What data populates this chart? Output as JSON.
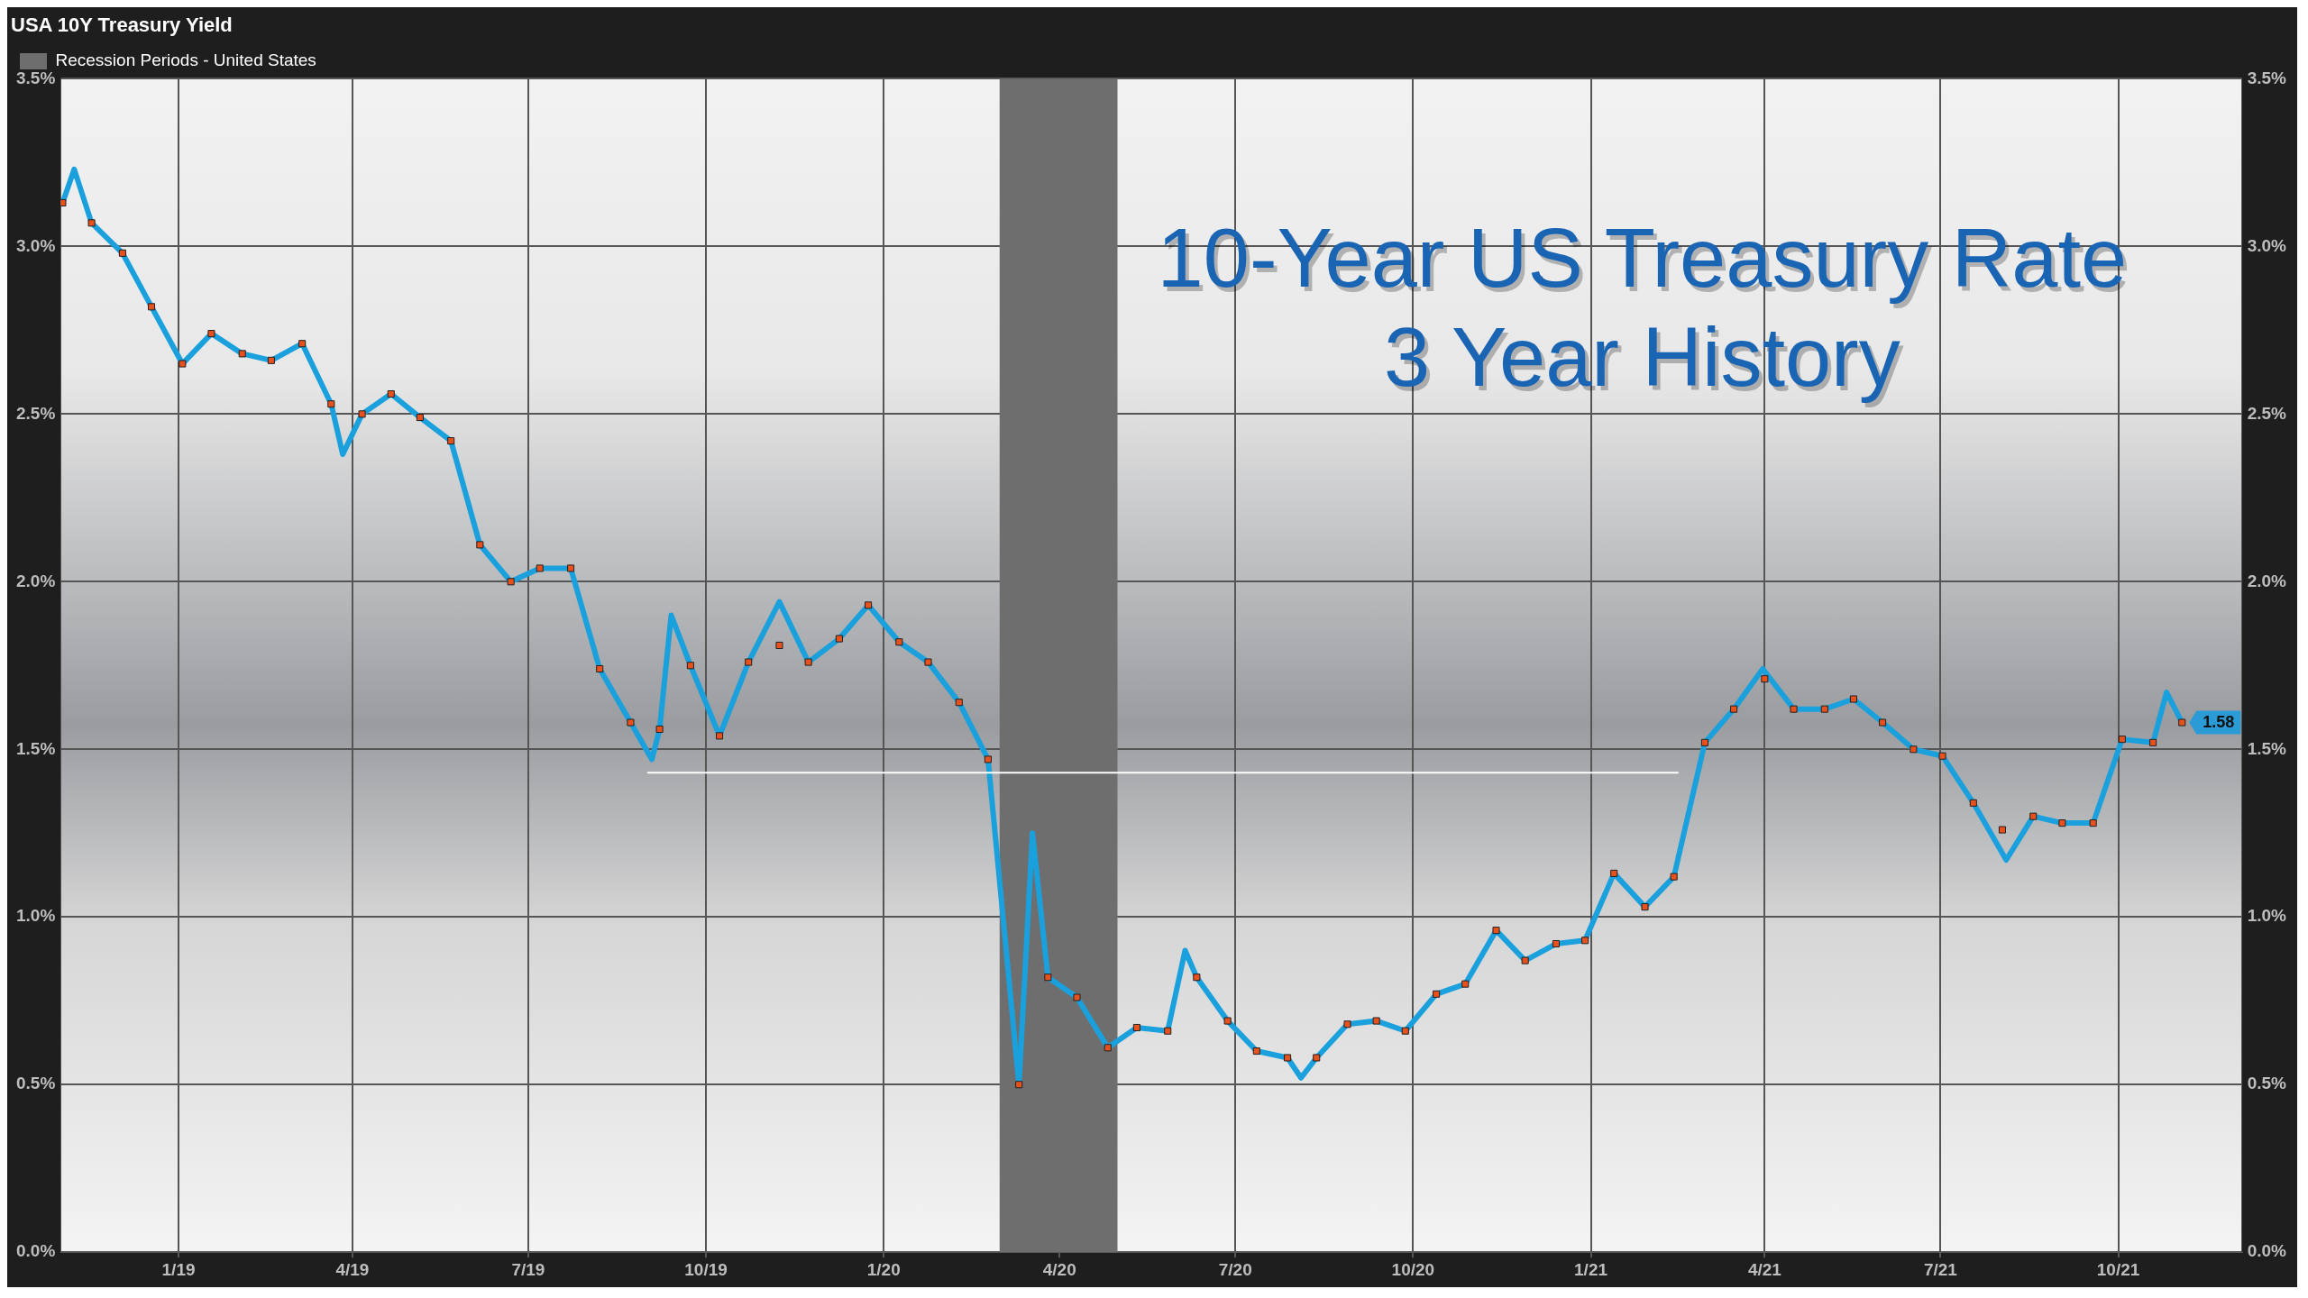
{
  "chart_data": {
    "type": "line",
    "title": "USA 10Y Treasury Yield",
    "annotations": [
      "10-Year US Treasury Rate",
      "3 Year History",
      {
        "text": "1.58",
        "x": "2021-11-03",
        "y": 1.58
      }
    ],
    "xlim": [
      "2018-11-01",
      "2021-12-04"
    ],
    "xticks": [
      {
        "value": "2019-01-01",
        "label": "1/19"
      },
      {
        "value": "2019-04-01",
        "label": "4/19"
      },
      {
        "value": "2019-07-01",
        "label": "7/19"
      },
      {
        "value": "2019-10-01",
        "label": "10/19"
      },
      {
        "value": "2020-01-01",
        "label": "1/20"
      },
      {
        "value": "2020-04-01",
        "label": "4/20"
      },
      {
        "value": "2020-07-01",
        "label": "7/20"
      },
      {
        "value": "2020-10-01",
        "label": "10/20"
      },
      {
        "value": "2021-01-01",
        "label": "1/21"
      },
      {
        "value": "2021-04-01",
        "label": "4/21"
      },
      {
        "value": "2021-07-01",
        "label": "7/21"
      },
      {
        "value": "2021-10-01",
        "label": "10/21"
      }
    ],
    "ylim": [
      0,
      3.5
    ],
    "yticks": [
      {
        "value": 0,
        "label": "0.0%"
      },
      {
        "value": 0.5,
        "label": "0.5%"
      },
      {
        "value": 1,
        "label": "1.0%"
      },
      {
        "value": 1.5,
        "label": "1.5%"
      },
      {
        "value": 2,
        "label": "2.0%"
      },
      {
        "value": 2.5,
        "label": "2.5%"
      },
      {
        "value": 3,
        "label": "3.0%"
      },
      {
        "value": 3.5,
        "label": "3.5%"
      }
    ],
    "y2lim": [
      0,
      3.5
    ],
    "y2ticks": [
      {
        "value": 0,
        "label": "0.0%"
      },
      {
        "value": 0.5,
        "label": "0.5%"
      },
      {
        "value": 1,
        "label": "1.0%"
      },
      {
        "value": 1.5,
        "label": "1.5%"
      },
      {
        "value": 2,
        "label": "2.0%"
      },
      {
        "value": 2.5,
        "label": "2.5%"
      },
      {
        "value": 3,
        "label": "3.0%"
      },
      {
        "value": 3.5,
        "label": "3.5%"
      }
    ],
    "grid": true,
    "legend": "top left",
    "bands": [
      {
        "axis": "x",
        "from": "2020-03-01",
        "to": "2020-05-01",
        "label": "Recession Periods - United States",
        "color": "#6e6e6e"
      }
    ],
    "series": [
      {
        "type": "line",
        "color": "#ffffff",
        "marker": "none",
        "x": [
          "2019-09-01",
          "2021-02-15"
        ],
        "values": [
          1.43,
          1.43
        ]
      },
      {
        "type": "line",
        "color": "#1aa0dc",
        "marker": "none",
        "x": [
          "2018-11-02",
          "2018-11-08",
          "2018-11-17",
          "2018-12-03",
          "2018-12-18",
          "2019-01-03",
          "2019-01-18",
          "2019-02-03",
          "2019-02-18",
          "2019-03-06",
          "2019-03-21",
          "2019-03-27",
          "2019-04-06",
          "2019-04-21",
          "2019-05-06",
          "2019-05-22",
          "2019-06-06",
          "2019-06-22",
          "2019-07-07",
          "2019-07-23",
          "2019-08-07",
          "2019-08-23",
          "2019-09-03",
          "2019-09-07",
          "2019-09-13",
          "2019-09-23",
          "2019-10-08",
          "2019-10-23",
          "2019-11-08",
          "2019-11-23",
          "2019-12-09",
          "2019-12-24",
          "2020-01-09",
          "2020-01-24",
          "2020-02-09",
          "2020-02-24",
          "2020-03-11",
          "2020-03-18",
          "2020-03-26",
          "2020-04-10",
          "2020-04-26",
          "2020-05-11",
          "2020-05-27",
          "2020-06-05",
          "2020-06-11",
          "2020-06-27",
          "2020-07-12",
          "2020-07-28",
          "2020-08-04",
          "2020-08-12",
          "2020-08-28",
          "2020-09-12",
          "2020-09-27",
          "2020-10-13",
          "2020-10-28",
          "2020-11-13",
          "2020-11-28",
          "2020-12-14",
          "2020-12-29",
          "2021-01-13",
          "2021-01-29",
          "2021-02-13",
          "2021-03-01",
          "2021-03-16",
          "2021-03-31",
          "2021-04-16",
          "2021-05-02",
          "2021-05-17",
          "2021-06-01",
          "2021-06-17",
          "2021-07-02",
          "2021-07-18",
          "2021-08-04",
          "2021-08-18",
          "2021-09-02",
          "2021-09-18",
          "2021-10-03",
          "2021-10-19",
          "2021-10-26",
          "2021-11-03"
        ],
        "values": [
          3.13,
          3.23,
          3.07,
          2.98,
          2.82,
          2.65,
          2.74,
          2.68,
          2.66,
          2.71,
          2.53,
          2.38,
          2.5,
          2.56,
          2.49,
          2.42,
          2.11,
          2.0,
          2.04,
          2.04,
          1.74,
          1.58,
          1.47,
          1.56,
          1.9,
          1.75,
          1.54,
          1.76,
          1.94,
          1.76,
          1.83,
          1.93,
          1.82,
          1.76,
          1.64,
          1.47,
          0.5,
          1.25,
          0.82,
          0.76,
          0.61,
          0.67,
          0.66,
          0.9,
          0.82,
          0.69,
          0.6,
          0.58,
          0.52,
          0.58,
          0.68,
          0.69,
          0.66,
          0.77,
          0.8,
          0.96,
          0.87,
          0.92,
          0.93,
          1.13,
          1.03,
          1.12,
          1.52,
          1.62,
          1.74,
          1.62,
          1.62,
          1.65,
          1.58,
          1.5,
          1.48,
          1.34,
          1.17,
          1.3,
          1.28,
          1.28,
          1.53,
          1.52,
          1.67,
          1.58
        ]
      },
      {
        "type": "scatter",
        "color": "#e8501c",
        "marker": "square",
        "x": [
          "2018-11-02",
          "2018-11-17",
          "2018-12-03",
          "2018-12-18",
          "2019-01-03",
          "2019-01-18",
          "2019-02-03",
          "2019-02-18",
          "2019-03-06",
          "2019-03-21",
          "2019-04-06",
          "2019-04-21",
          "2019-05-06",
          "2019-05-22",
          "2019-06-06",
          "2019-06-22",
          "2019-07-07",
          "2019-07-23",
          "2019-08-07",
          "2019-08-23",
          "2019-09-07",
          "2019-09-23",
          "2019-10-08",
          "2019-10-23",
          "2019-11-08",
          "2019-11-23",
          "2019-12-09",
          "2019-12-24",
          "2020-01-09",
          "2020-01-24",
          "2020-02-09",
          "2020-02-24",
          "2020-03-11",
          "2020-03-26",
          "2020-04-10",
          "2020-04-26",
          "2020-05-11",
          "2020-05-27",
          "2020-06-11",
          "2020-06-27",
          "2020-07-12",
          "2020-07-28",
          "2020-08-12",
          "2020-08-28",
          "2020-09-12",
          "2020-09-27",
          "2020-10-13",
          "2020-10-28",
          "2020-11-13",
          "2020-11-28",
          "2020-12-14",
          "2020-12-29",
          "2021-01-13",
          "2021-01-29",
          "2021-02-13",
          "2021-03-01",
          "2021-03-16",
          "2021-04-01",
          "2021-04-16",
          "2021-05-02",
          "2021-05-17",
          "2021-06-01",
          "2021-06-17",
          "2021-07-02",
          "2021-07-18",
          "2021-08-02",
          "2021-08-18",
          "2021-09-02",
          "2021-09-18",
          "2021-10-03",
          "2021-10-19",
          "2021-11-03"
        ],
        "values": [
          3.13,
          3.07,
          2.98,
          2.82,
          2.65,
          2.74,
          2.68,
          2.66,
          2.71,
          2.53,
          2.5,
          2.56,
          2.49,
          2.42,
          2.11,
          2.0,
          2.04,
          2.04,
          1.74,
          1.58,
          1.56,
          1.75,
          1.54,
          1.76,
          1.81,
          1.76,
          1.83,
          1.93,
          1.82,
          1.76,
          1.64,
          1.47,
          0.5,
          0.82,
          0.76,
          0.61,
          0.67,
          0.66,
          0.82,
          0.69,
          0.6,
          0.58,
          0.58,
          0.68,
          0.69,
          0.66,
          0.77,
          0.8,
          0.96,
          0.87,
          0.92,
          0.93,
          1.13,
          1.03,
          1.12,
          1.52,
          1.62,
          1.71,
          1.62,
          1.62,
          1.65,
          1.58,
          1.5,
          1.48,
          1.34,
          1.26,
          1.3,
          1.28,
          1.28,
          1.53,
          1.52,
          1.58
        ]
      }
    ]
  }
}
